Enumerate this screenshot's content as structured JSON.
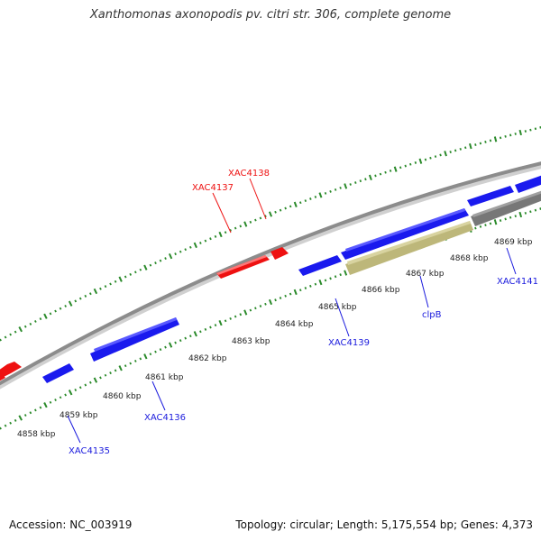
{
  "header": {
    "title": "Xanthomonas axonopodis pv. citri str. 306, complete genome"
  },
  "footer": {
    "accession": "Accession: NC_003919",
    "summary": "Topology: circular; Length: 5,175,554 bp; Genes: 4,373"
  },
  "colors": {
    "forward_gene": "#ee1111",
    "reverse_gene": "#1a1aee",
    "highlight_gene": "#bdb77a",
    "grey_gene": "#777777",
    "backbone": "#8c8c8c",
    "tick": "#2a8a2a",
    "forward_label": "#ee1111",
    "reverse_label": "#1a1add"
  },
  "map": {
    "unit": "kbp",
    "scale_labels": [
      "4858 kbp",
      "4859 kbp",
      "4860 kbp",
      "4861 kbp",
      "4862 kbp",
      "4863 kbp",
      "4864 kbp",
      "4865 kbp",
      "4866 kbp",
      "4867 kbp",
      "4868 kbp",
      "4869 kbp"
    ],
    "forward_labels": [
      "XAC4137",
      "XAC4138"
    ],
    "reverse_labels": [
      "XAC4135",
      "XAC4136",
      "XAC4139",
      "clpB",
      "XAC4141"
    ]
  }
}
